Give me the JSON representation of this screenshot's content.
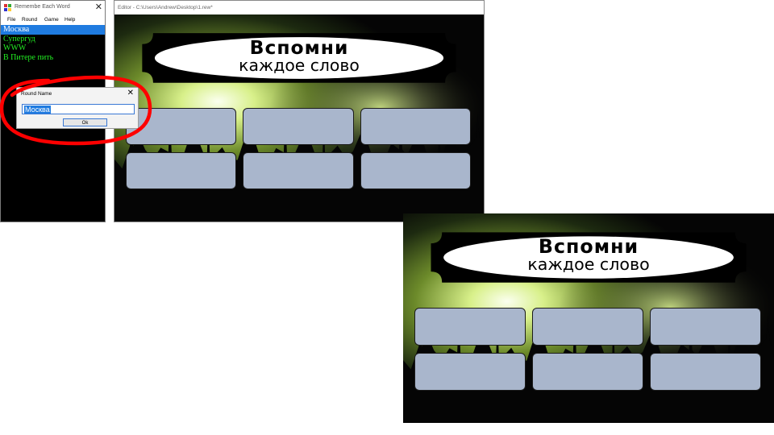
{
  "main_window": {
    "title": "Remembe Each Word",
    "close_glyph": "✕",
    "menu": [
      "File",
      "Round",
      "Game",
      "Help"
    ],
    "words": [
      {
        "text": "Москва",
        "selected": true
      },
      {
        "text": "Супергуд",
        "selected": false
      },
      {
        "text": "WWW",
        "selected": false
      },
      {
        "text": "В Питере пить",
        "selected": false
      }
    ]
  },
  "dialog": {
    "title": "Round Name",
    "close_glyph": "✕",
    "input_value": "Москва",
    "ok_label": "Ok"
  },
  "editor": {
    "title": "Editor - C:\\Users\\Andrew\\Desktop\\1.rew*"
  },
  "slide": {
    "banner_line1": "Вспомни",
    "banner_line2": "каждое слово",
    "slot_count": 6
  },
  "preview_slide": {
    "banner_line1": "Вспомни",
    "banner_line2": "каждое слово",
    "slot_count": 6
  },
  "colors": {
    "list_text": "#22ee22",
    "selection": "#1f7be0",
    "slot_fill": "#a9b6cc",
    "highlight": "#ff0000"
  },
  "icons": [
    "app-icon",
    "close-icon"
  ]
}
